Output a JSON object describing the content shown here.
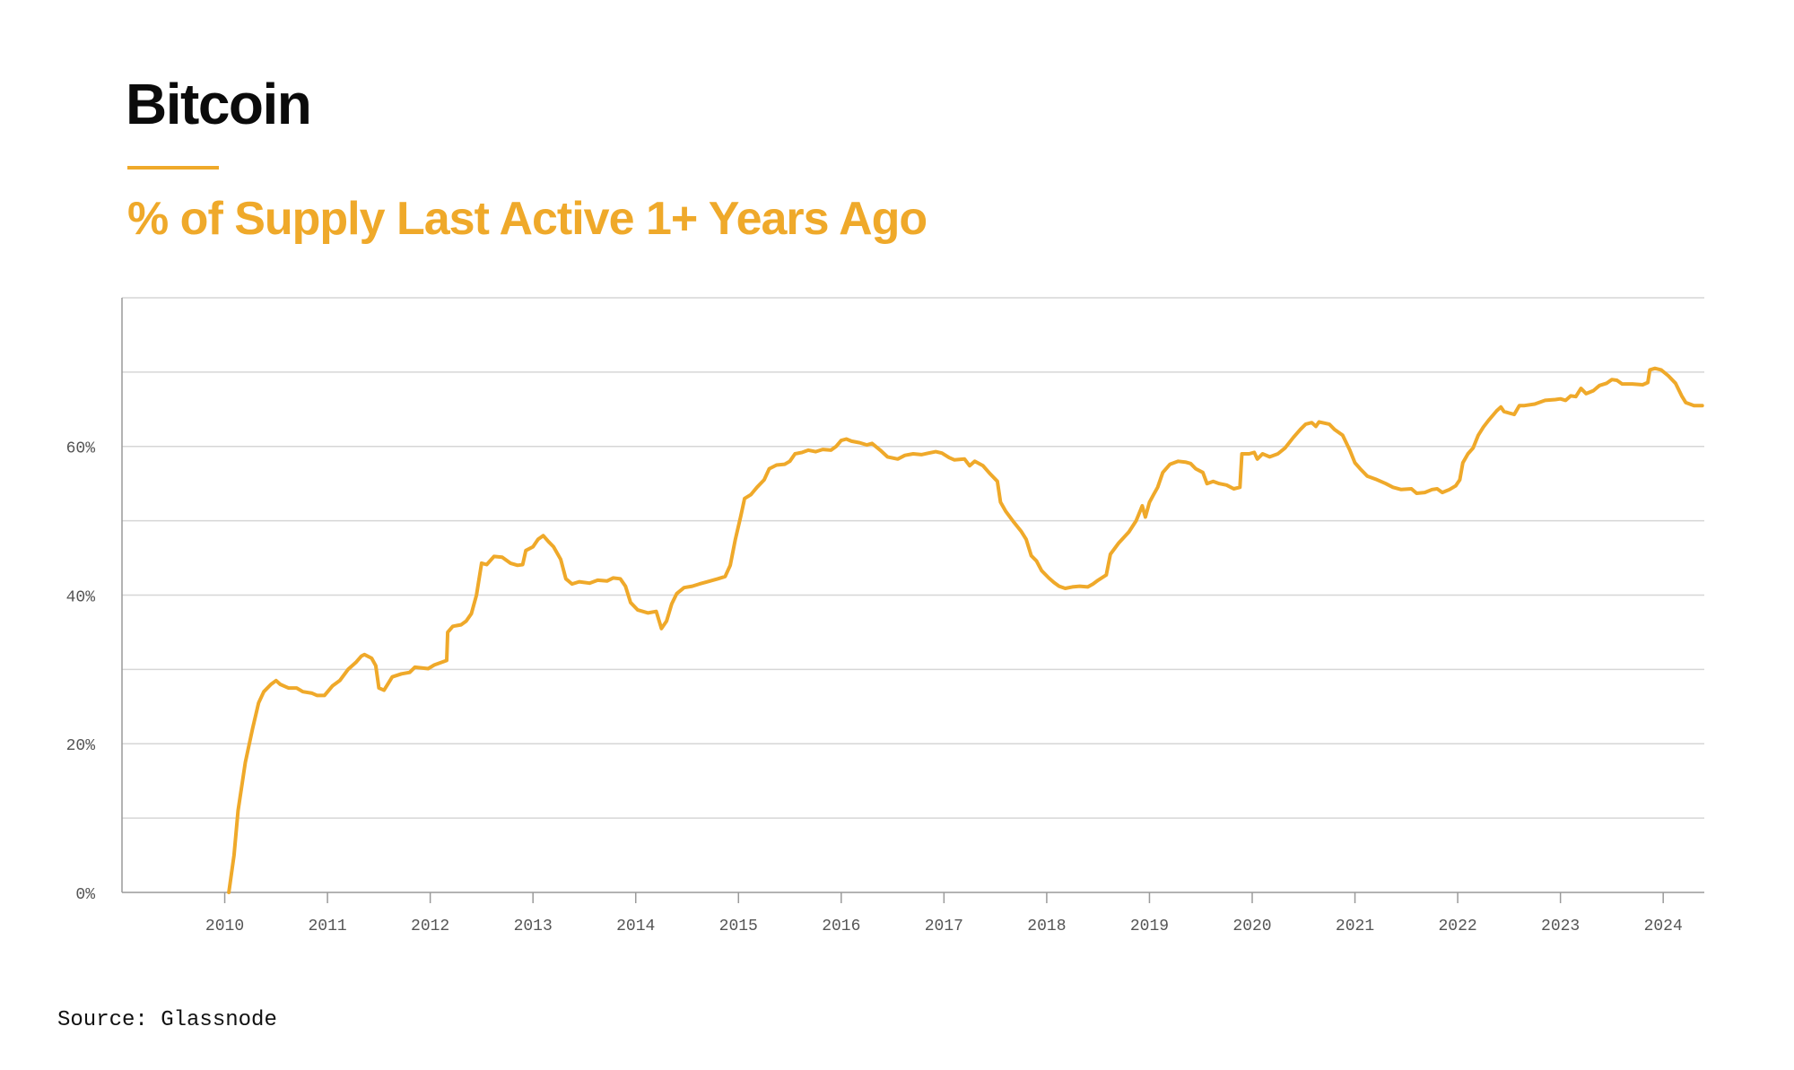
{
  "header": {
    "title": "Bitcoin",
    "subtitle": "% of Supply Last Active 1+ Years Ago"
  },
  "footer": {
    "source": "Source: Glassnode"
  },
  "colors": {
    "accent": "#EFA92A",
    "grid": "#d6d6d6",
    "axis": "#9a9a9a"
  },
  "chart_data": {
    "type": "line",
    "title": "% of Supply Last Active 1+ Years Ago",
    "xlabel": "",
    "ylabel": "",
    "grid": true,
    "xlim": [
      2009.0,
      2024.4
    ],
    "ylim": [
      0,
      80
    ],
    "y_ticks": [
      {
        "value": 0,
        "label": "0%"
      },
      {
        "value": 20,
        "label": "20%"
      },
      {
        "value": 40,
        "label": "40%"
      },
      {
        "value": 60,
        "label": "60%"
      }
    ],
    "y_gridlines": [
      10,
      20,
      30,
      40,
      50,
      60,
      70,
      80
    ],
    "x_ticks": [
      {
        "value": 2010,
        "label": "2010"
      },
      {
        "value": 2011,
        "label": "2011"
      },
      {
        "value": 2012,
        "label": "2012"
      },
      {
        "value": 2013,
        "label": "2013"
      },
      {
        "value": 2014,
        "label": "2014"
      },
      {
        "value": 2015,
        "label": "2015"
      },
      {
        "value": 2016,
        "label": "2016"
      },
      {
        "value": 2017,
        "label": "2017"
      },
      {
        "value": 2018,
        "label": "2018"
      },
      {
        "value": 2019,
        "label": "2019"
      },
      {
        "value": 2020,
        "label": "2020"
      },
      {
        "value": 2021,
        "label": "2021"
      },
      {
        "value": 2022,
        "label": "2022"
      },
      {
        "value": 2023,
        "label": "2023"
      },
      {
        "value": 2024,
        "label": "2024"
      }
    ],
    "series": [
      {
        "points": [
          [
            2010.04,
            0
          ],
          [
            2010.09,
            5
          ],
          [
            2010.13,
            11
          ],
          [
            2010.2,
            17.5
          ],
          [
            2010.27,
            22
          ],
          [
            2010.33,
            25.5
          ],
          [
            2010.38,
            27
          ],
          [
            2010.45,
            28
          ],
          [
            2010.5,
            28.5
          ],
          [
            2010.54,
            28
          ],
          [
            2010.62,
            27.5
          ],
          [
            2010.7,
            27.5
          ],
          [
            2010.76,
            27
          ],
          [
            2010.85,
            26.8
          ],
          [
            2010.9,
            26.5
          ],
          [
            2010.97,
            26.5
          ],
          [
            2011.05,
            27.8
          ],
          [
            2011.12,
            28.5
          ],
          [
            2011.2,
            30
          ],
          [
            2011.28,
            31
          ],
          [
            2011.33,
            31.8
          ],
          [
            2011.36,
            32
          ],
          [
            2011.43,
            31.5
          ],
          [
            2011.47,
            30.5
          ],
          [
            2011.5,
            27.5
          ],
          [
            2011.55,
            27.2
          ],
          [
            2011.63,
            29
          ],
          [
            2011.72,
            29.4
          ],
          [
            2011.8,
            29.6
          ],
          [
            2011.85,
            30.3
          ],
          [
            2011.92,
            30.2
          ],
          [
            2011.98,
            30.1
          ],
          [
            2012.04,
            30.6
          ],
          [
            2012.1,
            30.9
          ],
          [
            2012.16,
            31.2
          ],
          [
            2012.17,
            35
          ],
          [
            2012.22,
            35.8
          ],
          [
            2012.3,
            36
          ],
          [
            2012.35,
            36.5
          ],
          [
            2012.4,
            37.5
          ],
          [
            2012.45,
            40
          ],
          [
            2012.5,
            44.3
          ],
          [
            2012.55,
            44.1
          ],
          [
            2012.62,
            45.2
          ],
          [
            2012.7,
            45.1
          ],
          [
            2012.78,
            44.3
          ],
          [
            2012.85,
            44
          ],
          [
            2012.9,
            44.1
          ],
          [
            2012.93,
            46
          ],
          [
            2013.0,
            46.5
          ],
          [
            2013.05,
            47.5
          ],
          [
            2013.1,
            48
          ],
          [
            2013.15,
            47.2
          ],
          [
            2013.2,
            46.5
          ],
          [
            2013.27,
            44.8
          ],
          [
            2013.32,
            42.2
          ],
          [
            2013.38,
            41.5
          ],
          [
            2013.45,
            41.8
          ],
          [
            2013.55,
            41.6
          ],
          [
            2013.63,
            42
          ],
          [
            2013.72,
            41.9
          ],
          [
            2013.78,
            42.3
          ],
          [
            2013.85,
            42.2
          ],
          [
            2013.9,
            41.2
          ],
          [
            2013.95,
            39
          ],
          [
            2014.02,
            38
          ],
          [
            2014.12,
            37.6
          ],
          [
            2014.2,
            37.8
          ],
          [
            2014.25,
            35.5
          ],
          [
            2014.3,
            36.5
          ],
          [
            2014.35,
            38.8
          ],
          [
            2014.4,
            40.2
          ],
          [
            2014.47,
            41
          ],
          [
            2014.55,
            41.2
          ],
          [
            2014.62,
            41.5
          ],
          [
            2014.7,
            41.8
          ],
          [
            2014.8,
            42.2
          ],
          [
            2014.87,
            42.5
          ],
          [
            2014.92,
            44
          ],
          [
            2014.97,
            47.5
          ],
          [
            2015.02,
            50.5
          ],
          [
            2015.06,
            53
          ],
          [
            2015.12,
            53.5
          ],
          [
            2015.18,
            54.5
          ],
          [
            2015.25,
            55.5
          ],
          [
            2015.3,
            57
          ],
          [
            2015.37,
            57.5
          ],
          [
            2015.45,
            57.6
          ],
          [
            2015.5,
            58
          ],
          [
            2015.55,
            59
          ],
          [
            2015.62,
            59.2
          ],
          [
            2015.68,
            59.5
          ],
          [
            2015.75,
            59.3
          ],
          [
            2015.82,
            59.6
          ],
          [
            2015.9,
            59.5
          ],
          [
            2015.95,
            60
          ],
          [
            2016.0,
            60.8
          ],
          [
            2016.05,
            61
          ],
          [
            2016.1,
            60.7
          ],
          [
            2016.18,
            60.5
          ],
          [
            2016.25,
            60.2
          ],
          [
            2016.3,
            60.4
          ],
          [
            2016.38,
            59.5
          ],
          [
            2016.45,
            58.6
          ],
          [
            2016.55,
            58.3
          ],
          [
            2016.62,
            58.8
          ],
          [
            2016.7,
            59
          ],
          [
            2016.78,
            58.9
          ],
          [
            2016.85,
            59.1
          ],
          [
            2016.92,
            59.3
          ],
          [
            2016.98,
            59.1
          ],
          [
            2017.05,
            58.5
          ],
          [
            2017.1,
            58.2
          ],
          [
            2017.2,
            58.3
          ],
          [
            2017.25,
            57.4
          ],
          [
            2017.3,
            58
          ],
          [
            2017.38,
            57.4
          ],
          [
            2017.45,
            56.3
          ],
          [
            2017.52,
            55.3
          ],
          [
            2017.55,
            52.5
          ],
          [
            2017.6,
            51.3
          ],
          [
            2017.68,
            49.8
          ],
          [
            2017.75,
            48.6
          ],
          [
            2017.8,
            47.5
          ],
          [
            2017.85,
            45.3
          ],
          [
            2017.9,
            44.6
          ],
          [
            2017.95,
            43.3
          ],
          [
            2018.02,
            42.3
          ],
          [
            2018.07,
            41.7
          ],
          [
            2018.12,
            41.2
          ],
          [
            2018.18,
            40.9
          ],
          [
            2018.25,
            41.1
          ],
          [
            2018.32,
            41.2
          ],
          [
            2018.4,
            41.1
          ],
          [
            2018.45,
            41.5
          ],
          [
            2018.5,
            42
          ],
          [
            2018.58,
            42.7
          ],
          [
            2018.62,
            45.5
          ],
          [
            2018.7,
            47
          ],
          [
            2018.8,
            48.5
          ],
          [
            2018.87,
            50
          ],
          [
            2018.93,
            52
          ],
          [
            2018.96,
            50.5
          ],
          [
            2019.0,
            52.5
          ],
          [
            2019.04,
            53.5
          ],
          [
            2019.08,
            54.5
          ],
          [
            2019.13,
            56.5
          ],
          [
            2019.2,
            57.6
          ],
          [
            2019.28,
            58
          ],
          [
            2019.35,
            57.9
          ],
          [
            2019.4,
            57.7
          ],
          [
            2019.45,
            57
          ],
          [
            2019.52,
            56.5
          ],
          [
            2019.56,
            55
          ],
          [
            2019.62,
            55.3
          ],
          [
            2019.68,
            55
          ],
          [
            2019.75,
            54.8
          ],
          [
            2019.82,
            54.3
          ],
          [
            2019.88,
            54.5
          ],
          [
            2019.9,
            59
          ],
          [
            2019.97,
            59
          ],
          [
            2020.02,
            59.2
          ],
          [
            2020.05,
            58.3
          ],
          [
            2020.1,
            59
          ],
          [
            2020.17,
            58.6
          ],
          [
            2020.25,
            59
          ],
          [
            2020.32,
            59.8
          ],
          [
            2020.4,
            61.2
          ],
          [
            2020.47,
            62.3
          ],
          [
            2020.52,
            63
          ],
          [
            2020.58,
            63.2
          ],
          [
            2020.62,
            62.7
          ],
          [
            2020.65,
            63.3
          ],
          [
            2020.75,
            63
          ],
          [
            2020.8,
            62.3
          ],
          [
            2020.88,
            61.5
          ],
          [
            2020.95,
            59.5
          ],
          [
            2021.0,
            57.8
          ],
          [
            2021.05,
            57
          ],
          [
            2021.12,
            56
          ],
          [
            2021.2,
            55.6
          ],
          [
            2021.3,
            55
          ],
          [
            2021.37,
            54.5
          ],
          [
            2021.45,
            54.2
          ],
          [
            2021.55,
            54.3
          ],
          [
            2021.6,
            53.7
          ],
          [
            2021.68,
            53.8
          ],
          [
            2021.75,
            54.2
          ],
          [
            2021.8,
            54.3
          ],
          [
            2021.85,
            53.8
          ],
          [
            2021.92,
            54.2
          ],
          [
            2021.98,
            54.7
          ],
          [
            2022.02,
            55.5
          ],
          [
            2022.05,
            57.8
          ],
          [
            2022.1,
            59
          ],
          [
            2022.15,
            59.8
          ],
          [
            2022.2,
            61.5
          ],
          [
            2022.25,
            62.6
          ],
          [
            2022.3,
            63.5
          ],
          [
            2022.38,
            64.8
          ],
          [
            2022.42,
            65.3
          ],
          [
            2022.45,
            64.7
          ],
          [
            2022.5,
            64.5
          ],
          [
            2022.55,
            64.3
          ],
          [
            2022.6,
            65.5
          ],
          [
            2022.65,
            65.5
          ],
          [
            2022.75,
            65.7
          ],
          [
            2022.85,
            66.2
          ],
          [
            2022.95,
            66.3
          ],
          [
            2023.0,
            66.4
          ],
          [
            2023.05,
            66.2
          ],
          [
            2023.1,
            66.8
          ],
          [
            2023.15,
            66.7
          ],
          [
            2023.2,
            67.8
          ],
          [
            2023.25,
            67.1
          ],
          [
            2023.32,
            67.5
          ],
          [
            2023.38,
            68.2
          ],
          [
            2023.45,
            68.5
          ],
          [
            2023.5,
            69
          ],
          [
            2023.55,
            68.9
          ],
          [
            2023.6,
            68.4
          ],
          [
            2023.7,
            68.4
          ],
          [
            2023.8,
            68.3
          ],
          [
            2023.85,
            68.6
          ],
          [
            2023.87,
            70.3
          ],
          [
            2023.92,
            70.5
          ],
          [
            2023.98,
            70.3
          ],
          [
            2024.05,
            69.5
          ],
          [
            2024.12,
            68.5
          ],
          [
            2024.18,
            66.8
          ],
          [
            2024.22,
            65.9
          ],
          [
            2024.3,
            65.5
          ],
          [
            2024.38,
            65.5
          ]
        ]
      }
    ]
  }
}
